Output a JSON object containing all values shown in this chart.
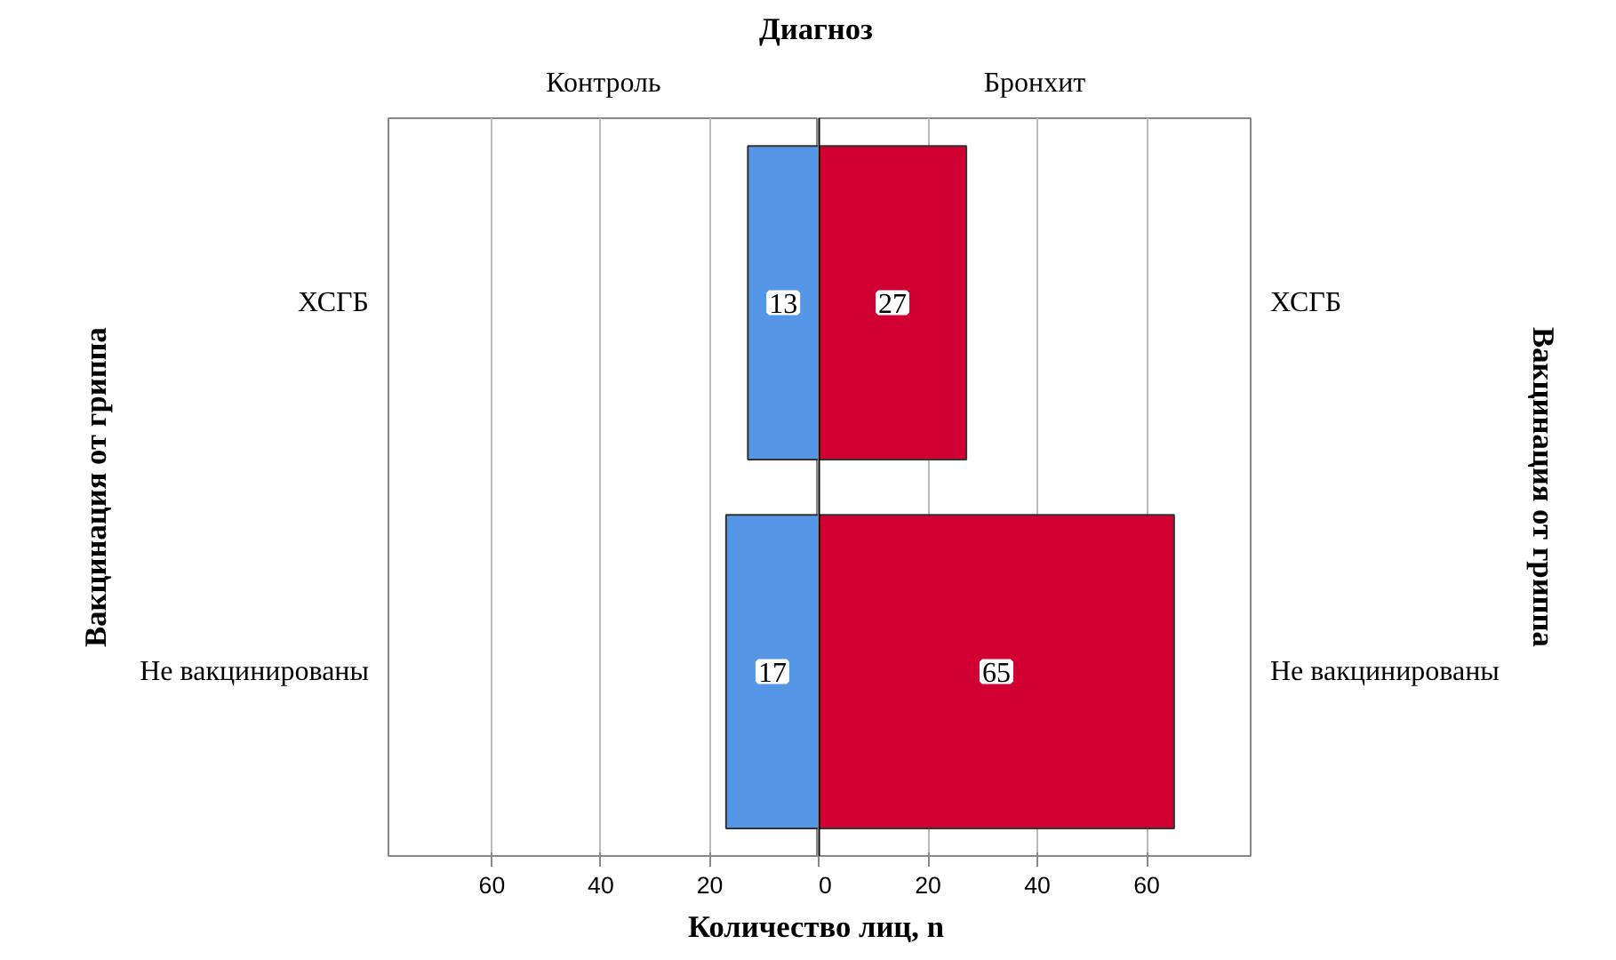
{
  "chart_data": [
    {
      "type": "bar",
      "orientation": "horizontal",
      "title": "Диагноз",
      "xlabel": "Количество лиц, n",
      "ylabel": "Вакцинация от гриппа",
      "categories": [
        "ХСГБ",
        "Не вакцинированы"
      ],
      "series": [
        {
          "name": "Контроль",
          "color": "#5596e6",
          "values": [
            13,
            17
          ]
        }
      ],
      "xlim": [
        79,
        0
      ],
      "xticks": [
        60,
        40,
        20
      ],
      "grid": "x",
      "legend": "top",
      "data_labels": true
    },
    {
      "type": "bar",
      "orientation": "horizontal",
      "y2label": "Вакцинация от гриппа",
      "categories": [
        "ХСГБ",
        "Не вакцинированы"
      ],
      "series": [
        {
          "name": "Бронхит",
          "color": "#d10033",
          "values": [
            27,
            65
          ]
        }
      ],
      "xlim": [
        0,
        79
      ],
      "xticks": [
        0,
        20,
        40,
        60
      ],
      "grid": "x",
      "legend": "top",
      "data_labels": true,
      "ref_lines": [
        {
          "axis": "x",
          "value": 0,
          "color": "#000000"
        }
      ]
    }
  ]
}
